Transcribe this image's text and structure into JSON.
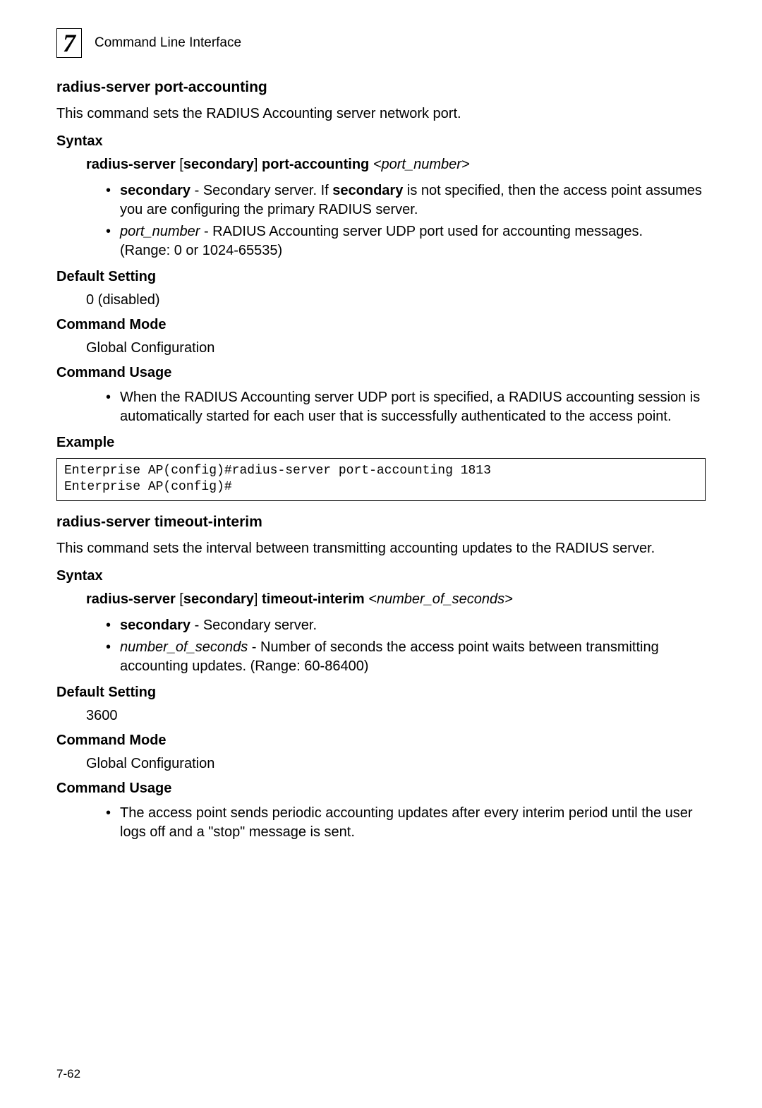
{
  "header": {
    "chapter_number": "7",
    "chapter_title": "Command Line Interface"
  },
  "section1": {
    "title": "radius-server port-accounting",
    "intro": "This command sets the RADIUS Accounting server network port.",
    "syntax_label": "Syntax",
    "syntax_bold1": "radius-server ",
    "syntax_bracket_open": "[",
    "syntax_bold2": "secondary",
    "syntax_bracket_close": "] ",
    "syntax_bold3": "port-accounting ",
    "syntax_italic": "<port_number>",
    "bullet1_bold1": "secondary",
    "bullet1_text1": " - Secondary server. If ",
    "bullet1_bold2": "secondary",
    "bullet1_text2": " is not specified, then the access point assumes you are configuring the primary RADIUS server.",
    "bullet2_italic": "port_number",
    "bullet2_text1": " - RADIUS Accounting server UDP port used for accounting messages.",
    "bullet2_text2": "(Range: 0 or 1024-65535)",
    "default_label": "Default Setting",
    "default_value": "0 (disabled)",
    "mode_label": "Command Mode",
    "mode_value": "Global Configuration",
    "usage_label": "Command Usage",
    "usage_bullet": "When the RADIUS Accounting server UDP port is specified, a RADIUS accounting session is automatically started for each user that is successfully authenticated to the access point.",
    "example_label": "Example",
    "example_code": "Enterprise AP(config)#radius-server port-accounting 1813\nEnterprise AP(config)#"
  },
  "section2": {
    "title": "radius-server timeout-interim",
    "intro": "This command sets the interval between transmitting accounting updates to the RADIUS server.",
    "syntax_label": "Syntax",
    "syntax_bold1": "radius-server ",
    "syntax_bracket_open": "[",
    "syntax_bold2": "secondary",
    "syntax_bracket_close": "] ",
    "syntax_bold3": "timeout-interim ",
    "syntax_italic": "<number_of_seconds>",
    "bullet1_bold": "secondary",
    "bullet1_text": " - Secondary server.",
    "bullet2_italic": "number_of_seconds",
    "bullet2_text": " - Number of seconds the access point waits between transmitting accounting updates. (Range: 60-86400)",
    "default_label": "Default Setting",
    "default_value": "3600",
    "mode_label": "Command Mode",
    "mode_value": "Global Configuration",
    "usage_label": "Command Usage",
    "usage_bullet": "The access point sends periodic accounting updates after every interim period until the user logs off and a \"stop\" message is sent."
  },
  "page_number": "7-62"
}
